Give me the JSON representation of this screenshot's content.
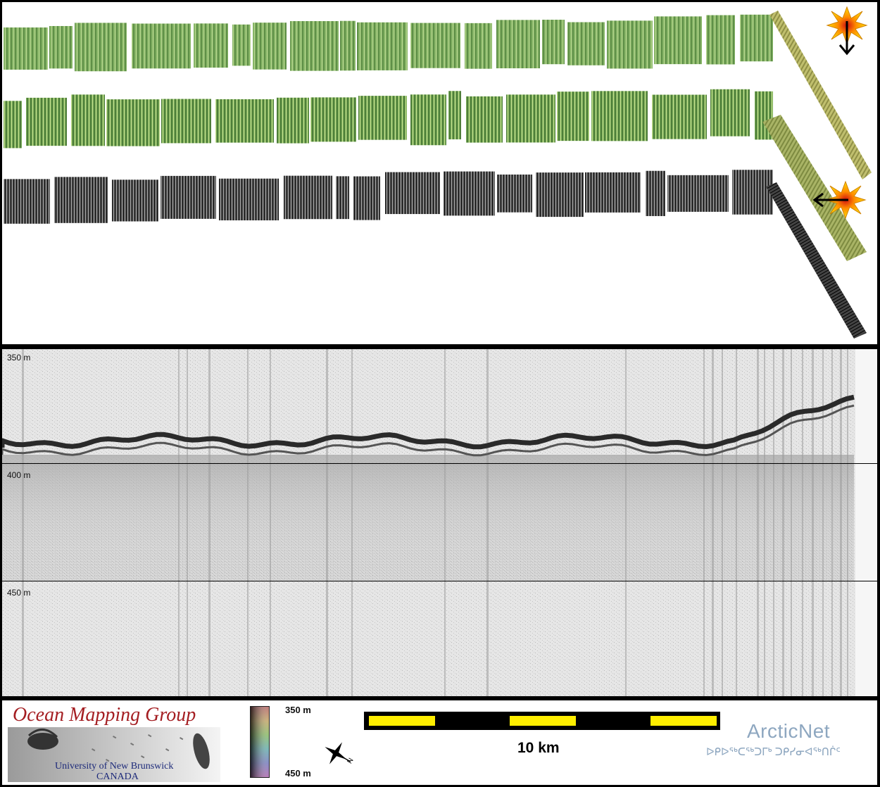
{
  "profile": {
    "depth_labels": [
      "350 m",
      "400 m",
      "450 m"
    ]
  },
  "footer": {
    "org_title": "Ocean Mapping Group",
    "org_university": "University of New Brunswick",
    "org_country": "CANADA",
    "colorbar_top": "350 m",
    "colorbar_bottom": "450 m",
    "scale_label": "10 km",
    "partner_name": "ArcticNet",
    "partner_inuktitut": "ᐅᑭᐅᖅᑕᖅᑐᒥᒃ ᑐᑭᓯᓂᐊᖅᑎᒌᑦ"
  },
  "colors": {
    "bathymetry": "#7fb060",
    "backscatter": "#3a3a3a",
    "track_turn": "#b8b86a",
    "scale_yellow": "#ffee00",
    "frame": "#000000"
  },
  "icons": {
    "start_marker": "starburst-icon",
    "end_marker": "starburst-icon",
    "direction_down": "arrow-down-icon",
    "direction_left": "arrow-left-icon",
    "north": "north-arrow-icon"
  }
}
